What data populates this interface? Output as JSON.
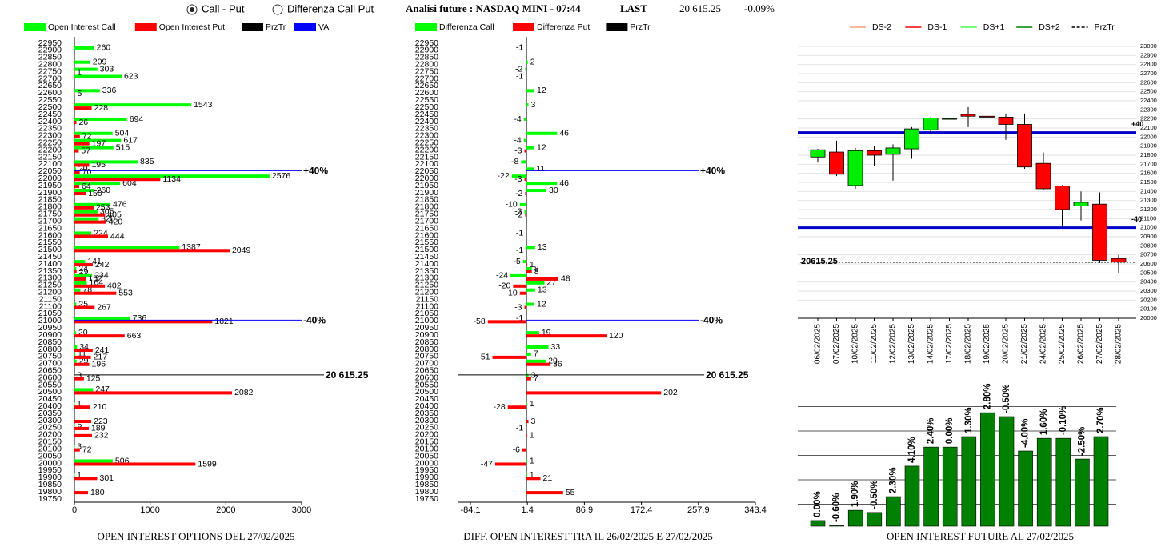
{
  "header": {
    "options": [
      {
        "label": "Call - Put",
        "selected": true
      },
      {
        "label": "Differenza Call Put",
        "selected": false
      }
    ],
    "title": "Analisi future : NASDAQ MINI - 07:44",
    "last_label": "LAST",
    "last_value": "20 615.25",
    "change": "-0.09%"
  },
  "chart_data": [
    {
      "type": "hbar",
      "title": "OPEN INTEREST OPTIONS DEL 27/02/2025",
      "categories": [
        22950,
        22900,
        22850,
        22800,
        22750,
        22700,
        22650,
        22600,
        22550,
        22500,
        22450,
        22400,
        22350,
        22300,
        22250,
        22200,
        22150,
        22100,
        22050,
        22000,
        21950,
        21900,
        21850,
        21800,
        21750,
        21700,
        21650,
        21600,
        21550,
        21500,
        21450,
        21400,
        21350,
        21300,
        21250,
        21200,
        21150,
        21100,
        21050,
        21000,
        20950,
        20900,
        20850,
        20800,
        20750,
        20700,
        20650,
        20600,
        20550,
        20500,
        20450,
        20400,
        20350,
        20300,
        20250,
        20200,
        20150,
        20100,
        20050,
        20000,
        19950,
        19900,
        19850,
        19800,
        19750
      ],
      "ylim": [
        19750,
        22950
      ],
      "series": [
        {
          "name": "Open Interest Call",
          "color": "#00ff00",
          "values": [
            null,
            260,
            null,
            209,
            303,
            623,
            null,
            336,
            null,
            1543,
            null,
            694,
            null,
            504,
            617,
            515,
            null,
            835,
            20,
            2576,
            604,
            260,
            null,
            476,
            305,
            320,
            null,
            224,
            null,
            1387,
            null,
            141,
            24,
            234,
            164,
            78,
            null,
            25,
            null,
            736,
            null,
            20,
            null,
            34,
            11,
            29,
            null,
            3,
            null,
            247,
            null,
            1,
            null,
            null,
            5,
            null,
            null,
            3,
            null,
            506,
            null,
            1,
            null,
            null,
            null
          ]
        },
        {
          "name": "Open Interest Put",
          "color": "#ff0000",
          "values": [
            null,
            null,
            null,
            null,
            1,
            null,
            null,
            5,
            null,
            228,
            null,
            26,
            null,
            72,
            197,
            57,
            null,
            195,
            70,
            1134,
            64,
            150,
            null,
            253,
            405,
            420,
            null,
            444,
            null,
            2049,
            null,
            242,
            29,
            152,
            402,
            553,
            null,
            267,
            null,
            1821,
            null,
            663,
            null,
            241,
            217,
            196,
            null,
            125,
            null,
            2082,
            null,
            210,
            null,
            223,
            189,
            232,
            null,
            72,
            null,
            1599,
            null,
            301,
            null,
            180,
            null
          ]
        }
      ],
      "extra_legend": [
        {
          "name": "PrzTr",
          "color": "#000000"
        },
        {
          "name": "VA",
          "color": "#0000ff"
        }
      ],
      "xlim": [
        0,
        3000
      ],
      "xticks": [
        0,
        1000,
        2000,
        3000
      ],
      "lines": [
        {
          "value": 22050,
          "label": "+40%",
          "color": "#0000ff"
        },
        {
          "value": 21000,
          "label": "-40%",
          "color": "#0000ff"
        },
        {
          "value": 20615.25,
          "label": "20 615.25",
          "color": "#000000"
        }
      ]
    },
    {
      "type": "hbar",
      "title": "DIFF. OPEN INTEREST TRA IL 26/02/2025 E 27/02/2025",
      "categories": [
        22950,
        22900,
        22850,
        22800,
        22750,
        22700,
        22650,
        22600,
        22550,
        22500,
        22450,
        22400,
        22350,
        22300,
        22250,
        22200,
        22150,
        22100,
        22050,
        22000,
        21950,
        21900,
        21850,
        21800,
        21750,
        21700,
        21650,
        21600,
        21550,
        21500,
        21450,
        21400,
        21350,
        21300,
        21250,
        21200,
        21150,
        21100,
        21050,
        21000,
        20950,
        20900,
        20850,
        20800,
        20750,
        20700,
        20650,
        20600,
        20550,
        20500,
        20450,
        20400,
        20350,
        20300,
        20250,
        20200,
        20150,
        20100,
        20050,
        20000,
        19950,
        19900,
        19850,
        19800,
        19750
      ],
      "ylim": [
        19750,
        22950
      ],
      "series": [
        {
          "name": "Differenza Call",
          "color": "#00ff00",
          "values": [
            null,
            -1,
            null,
            2,
            -2,
            -1,
            null,
            12,
            null,
            3,
            null,
            -4,
            null,
            46,
            -4,
            12,
            null,
            -8,
            11,
            -22,
            46,
            30,
            null,
            -10,
            -3,
            null,
            null,
            -1,
            null,
            13,
            null,
            -5,
            8,
            -24,
            27,
            13,
            null,
            12,
            null,
            -1,
            null,
            19,
            null,
            33,
            7,
            29,
            null,
            3,
            null,
            null,
            null,
            1,
            null,
            null,
            null,
            null,
            null,
            null,
            null,
            1,
            null,
            1,
            null,
            null,
            null
          ]
        },
        {
          "name": "Differenza Put",
          "color": "#ff0000",
          "values": [
            null,
            null,
            null,
            null,
            null,
            null,
            null,
            null,
            null,
            null,
            null,
            null,
            null,
            null,
            null,
            -3,
            null,
            null,
            null,
            -3,
            null,
            -2,
            null,
            null,
            -2,
            null,
            null,
            null,
            null,
            -1,
            null,
            1,
            8,
            48,
            -20,
            -10,
            null,
            -3,
            null,
            -58,
            null,
            120,
            null,
            null,
            -51,
            36,
            null,
            7,
            null,
            202,
            null,
            -28,
            null,
            3,
            -1,
            1,
            null,
            -6,
            null,
            -47,
            null,
            21,
            null,
            55,
            null
          ]
        }
      ],
      "extra_legend": [
        {
          "name": "PrzTr",
          "color": "#000000"
        }
      ],
      "xlim": [
        -84.1,
        343.4
      ],
      "xticks": [
        -84.1,
        1.4,
        86.9,
        172.4,
        257.9,
        343.4
      ],
      "lines": [
        {
          "value": 22050,
          "label": "+40%",
          "color": "#0000ff"
        },
        {
          "value": 21000,
          "label": "-40%",
          "color": "#0000ff"
        },
        {
          "value": 20615.25,
          "label": "20 615.25",
          "color": "#000000"
        }
      ]
    },
    {
      "type": "candlestick",
      "x": [
        "06/02/2025",
        "07/02/2025",
        "10/02/2025",
        "11/02/2025",
        "12/02/2025",
        "13/02/2025",
        "14/02/2025",
        "17/02/2025",
        "18/02/2025",
        "19/02/2025",
        "20/02/2025",
        "21/02/2025",
        "24/02/2025",
        "25/02/2025",
        "26/02/2025",
        "27/02/2025",
        "28/02/2025"
      ],
      "open": [
        21780,
        21835,
        21465,
        21850,
        21810,
        21870,
        22080,
        22200,
        22250,
        22230,
        22220,
        22140,
        21710,
        21460,
        21240,
        21260,
        20660
      ],
      "high": [
        21870,
        21960,
        21880,
        21900,
        21920,
        22110,
        22220,
        22210,
        22330,
        22310,
        22260,
        22260,
        21830,
        21470,
        21400,
        21390,
        20700
      ],
      "low": [
        21720,
        21570,
        21430,
        21680,
        21520,
        21760,
        22050,
        22195,
        22110,
        22090,
        21970,
        21650,
        21420,
        21000,
        21080,
        20610,
        20500
      ],
      "close": [
        21860,
        21590,
        21850,
        21800,
        21880,
        22090,
        22210,
        22205,
        22230,
        22220,
        22140,
        21670,
        21430,
        21200,
        21280,
        20640,
        20620
      ],
      "up_color": "#00ee00",
      "down_color": "#ff0000",
      "legend": [
        {
          "name": "DS-2",
          "color": "#f4a07a",
          "dash": false
        },
        {
          "name": "DS-1",
          "color": "#ff0000",
          "dash": false
        },
        {
          "name": "DS+1",
          "color": "#44ff44",
          "dash": false
        },
        {
          "name": "DS+2",
          "color": "#008000",
          "dash": false
        },
        {
          "name": "PrzTr",
          "color": "#000000",
          "dash": true
        }
      ],
      "ylim": [
        20000,
        23000
      ],
      "yticks": [
        20000,
        20100,
        20200,
        20300,
        20400,
        20500,
        20600,
        20700,
        20800,
        20900,
        21000,
        21100,
        21200,
        21300,
        21400,
        21500,
        21600,
        21700,
        21800,
        21900,
        22000,
        22100,
        22200,
        22300,
        22400,
        22500,
        22600,
        22700,
        22800,
        22900,
        23000
      ],
      "grid": true,
      "levels": [
        {
          "value": 22050,
          "label": "+40",
          "color": "#0000cc"
        },
        {
          "value": 21000,
          "label": "-40",
          "color": "#0000cc"
        }
      ],
      "last": 20615.25
    },
    {
      "type": "bar",
      "title": "OPEN INTEREST FUTURE AL 27/02/2025",
      "values": [
        0.33,
        0.13,
        0.75,
        0.66,
        1.31,
        2.56,
        3.34,
        3.34,
        3.77,
        4.75,
        4.59,
        3.18,
        3.7,
        3.7,
        2.85,
        3.77
      ],
      "bar_labels": [
        "0.00%",
        "-0.60%",
        "1.90%",
        "-0.50%",
        "2.30%",
        "4.10%",
        "2.40%",
        "0.00%",
        "1.30%",
        "2.80%",
        "-0.50%",
        "-4.00%",
        "1.60%",
        "-0.10%",
        "-2.50%",
        "2.70%"
      ],
      "color": "#008000",
      "ylim": [
        0,
        5
      ],
      "grid_lines": [
        1,
        2,
        3,
        4,
        5
      ]
    }
  ]
}
